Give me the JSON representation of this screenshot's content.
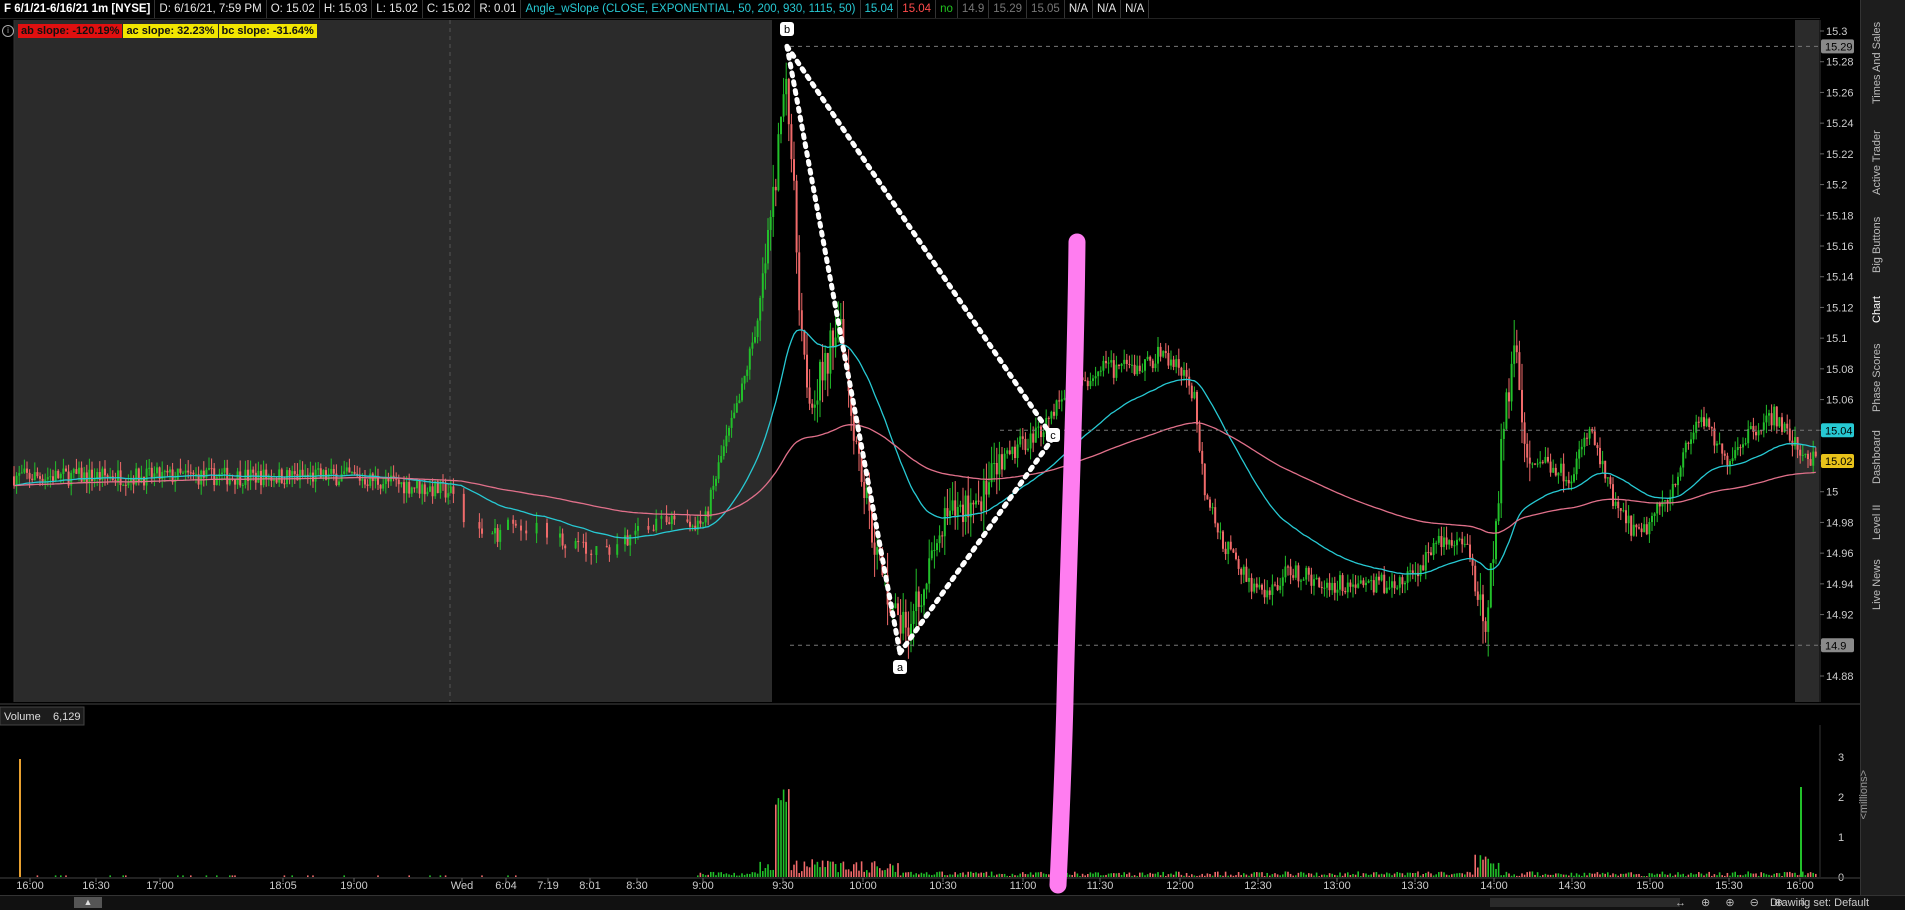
{
  "header": {
    "symbol": "F 6/1/21-6/16/21 1m [NYSE]",
    "date": "D: 6/16/21, 7:59 PM",
    "open": "O: 15.02",
    "high": "H: 15.03",
    "low": "L: 15.02",
    "close": "C: 15.02",
    "range": "R: 0.01",
    "study": "Angle_wSlope (CLOSE, EXPONENTIAL, 50, 200, 930, 1115, 50)",
    "v1": "15.04",
    "v2": "15.04",
    "v3": "no",
    "v4": "14.9",
    "v5": "15.29",
    "v6": "15.05",
    "na1": "N/A",
    "na2": "N/A",
    "na3": "N/A"
  },
  "slopes": {
    "ab": "ab slope: -120.19%",
    "ac": "ac slope: 32.23%",
    "bc": "bc slope: -31.64%"
  },
  "price_axis": {
    "ticks": [
      "15.3",
      "15.28",
      "15.26",
      "15.24",
      "15.22",
      "15.2",
      "15.18",
      "15.16",
      "15.14",
      "15.12",
      "15.1",
      "15.08",
      "15.06",
      "15.04",
      "15.02",
      "15",
      "14.98",
      "14.96",
      "14.94",
      "14.92",
      "14.9",
      "14.88"
    ],
    "badges": [
      {
        "label": "15.29",
        "color": "#8a8a8a"
      },
      {
        "label": "15.04",
        "color": "#27c9d3"
      },
      {
        "label": "15.02",
        "color": "#e8c21a"
      },
      {
        "label": "14.9",
        "color": "#8a8a8a"
      }
    ]
  },
  "points": {
    "a": "a",
    "b": "b",
    "c": "c"
  },
  "volume": {
    "label": "Volume",
    "value": "6,129",
    "ticks": [
      "3",
      "2",
      "1",
      "0"
    ],
    "unit": "<millions>"
  },
  "time_axis": [
    "16:00",
    "16:30",
    "17:00",
    "18:05",
    "19:00",
    "Wed",
    "6:04",
    "7:19",
    "8:01",
    "8:30",
    "9:00",
    "9:30",
    "10:00",
    "10:30",
    "11:00",
    "11:30",
    "12:00",
    "12:30",
    "13:00",
    "13:30",
    "14:00",
    "14:30",
    "15:00",
    "15:30",
    "16:00"
  ],
  "right_tabs": [
    "Times And Sales",
    "Active Trader",
    "Big Buttons",
    "Chart",
    "Phase Scores",
    "Dashboard",
    "Level II",
    "Live News"
  ],
  "bottom": {
    "drawing_set": "Drawing set: Default"
  },
  "colors": {
    "bull": "#22c02a",
    "bear": "#f06a6a",
    "ema_fast": "#27c9d3",
    "ema_slow": "#e0708a",
    "highlight": "#ff7df0",
    "bg_ext": "#2b2b2b"
  }
}
